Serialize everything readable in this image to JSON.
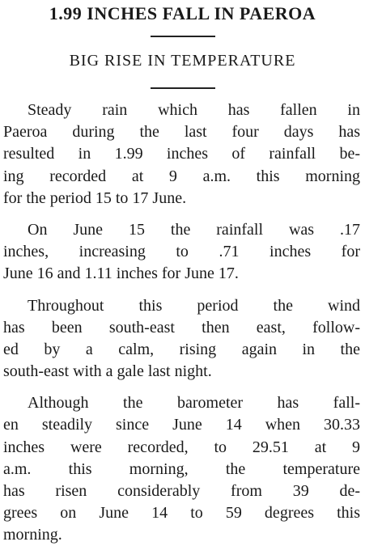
{
  "header": {
    "headline": "1.99 INCHES FALL IN PAEROA",
    "subheadline": "BIG RISE IN TEMPERATURE"
  },
  "article": {
    "paragraphs": [
      [
        "Steady rain which has fallen in",
        "Paeroa during the last four days has",
        "resulted in 1.99 inches of rainfall be-",
        "ing recorded at 9 a.m. this morning",
        "for the period 15 to 17 June."
      ],
      [
        "On June 15 the rainfall was .17",
        "inches, increasing to .71 inches for",
        "June 16 and 1.11 inches for June 17."
      ],
      [
        "Throughout this period the wind",
        "has been south-east then east, follow-",
        "ed by a calm, rising again in the",
        "south-east with a gale last night."
      ],
      [
        "Although the barometer has fall-",
        "en steadily since June 14 when 30.33",
        "inches were recorded, to 29.51 at 9",
        "a.m. this morning, the temperature",
        "has risen considerably from 39 de-",
        "grees on June 14 to 59 degrees this",
        "morning."
      ]
    ]
  }
}
